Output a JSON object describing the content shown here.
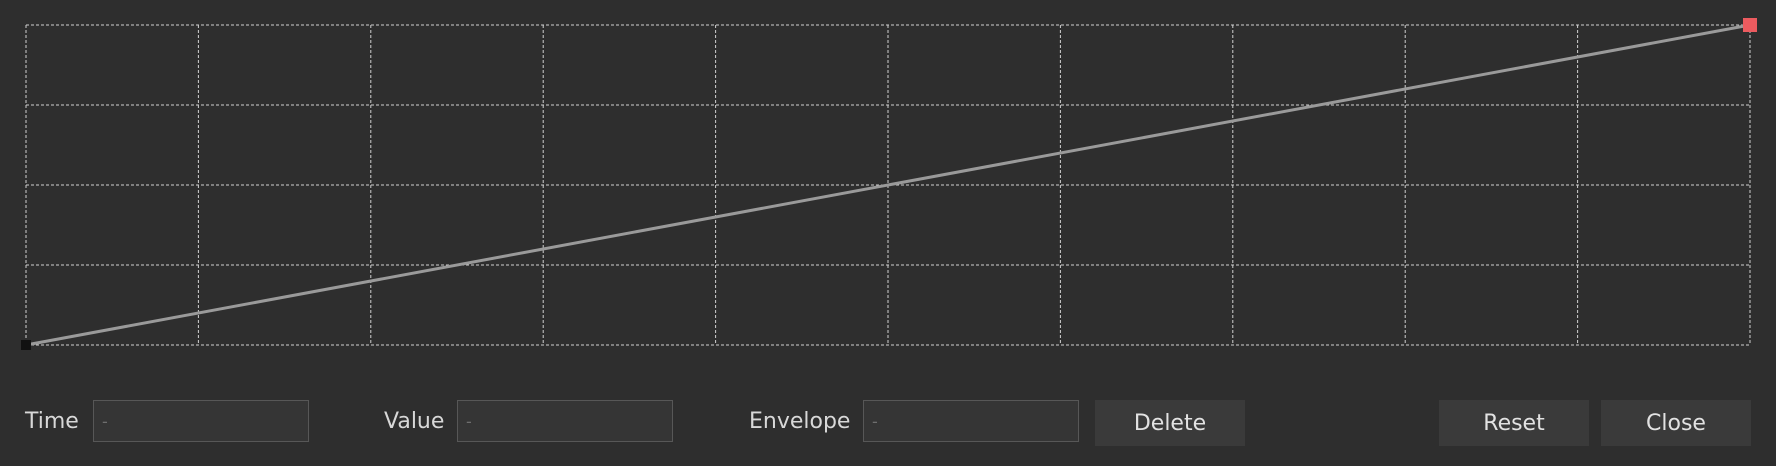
{
  "envelope": {
    "x_divisions": 10,
    "y_divisions": 4,
    "points": [
      {
        "time": 0,
        "value": 0
      },
      {
        "time": 1,
        "value": 1
      }
    ],
    "selected_point_index": 1,
    "colors": {
      "background": "#2e2e2e",
      "grid": "#d0d0d0",
      "line": "#9a9a9a",
      "point": "#111111",
      "selected_point": "#ec5b5f"
    }
  },
  "controls": {
    "time_label": "Time",
    "time_placeholder": "-",
    "value_label": "Value",
    "value_placeholder": "-",
    "envelope_label": "Envelope",
    "envelope_placeholder": "-",
    "delete_label": "Delete",
    "reset_label": "Reset",
    "close_label": "Close"
  }
}
